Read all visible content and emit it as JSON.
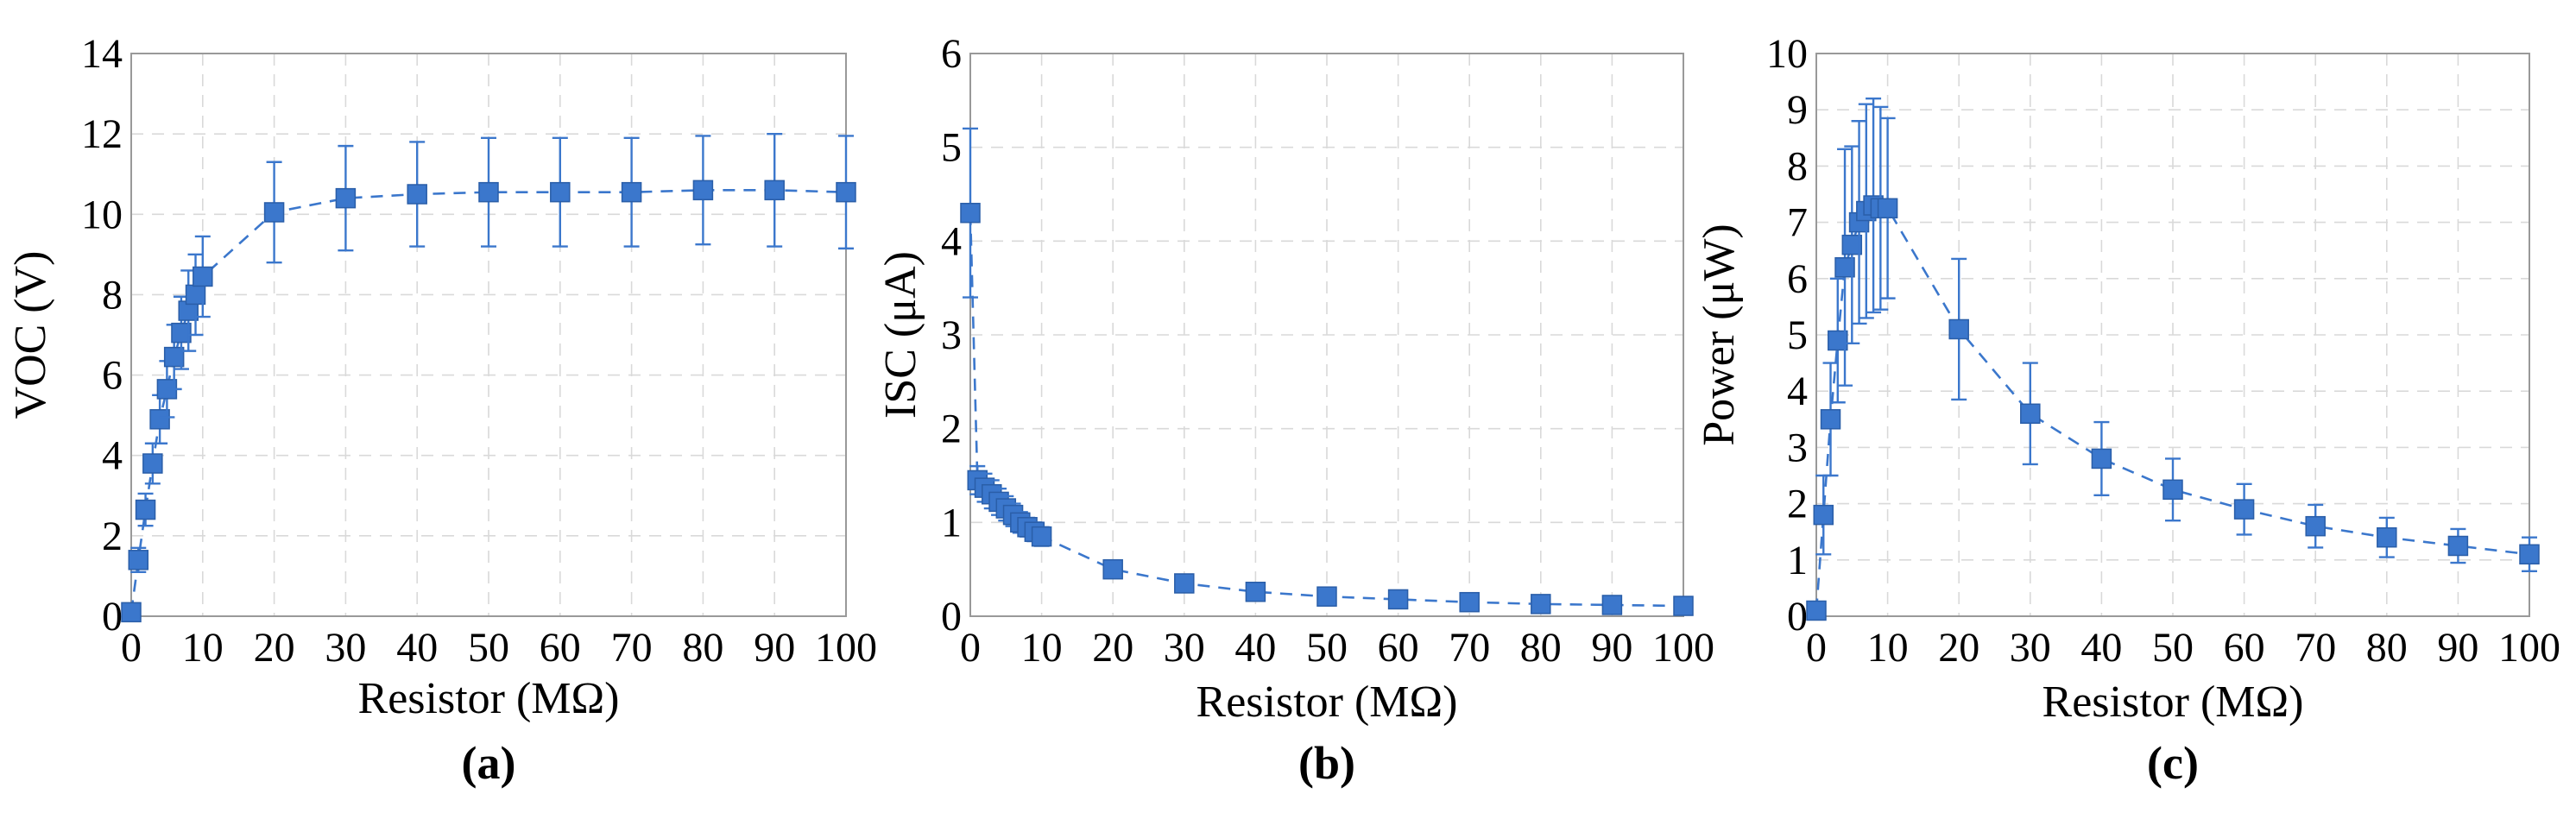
{
  "chart_data": [
    {
      "type": "line",
      "panel_label": "(a)",
      "xlabel": "Resistor (MΩ)",
      "ylabel": "VOC (V)",
      "xlim": [
        0,
        100
      ],
      "ylim": [
        0,
        14
      ],
      "xticks": [
        0,
        10,
        20,
        30,
        40,
        50,
        60,
        70,
        80,
        90,
        100
      ],
      "yticks": [
        0,
        2,
        4,
        6,
        8,
        10,
        12,
        14
      ],
      "grid": true,
      "color": "#3b77cc",
      "series": [
        {
          "x": [
            0,
            1,
            2,
            3,
            4,
            5,
            6,
            7,
            8,
            9,
            10,
            20,
            30,
            40,
            50,
            60,
            70,
            80,
            90,
            100
          ],
          "y": [
            0.1,
            1.4,
            2.65,
            3.8,
            4.9,
            5.65,
            6.45,
            7.05,
            7.6,
            8.0,
            8.45,
            10.05,
            10.4,
            10.5,
            10.55,
            10.55,
            10.55,
            10.6,
            10.6,
            10.55
          ],
          "err": [
            0.1,
            0.3,
            0.4,
            0.5,
            0.6,
            0.7,
            0.8,
            0.9,
            1.0,
            1.0,
            1.0,
            1.25,
            1.3,
            1.3,
            1.35,
            1.35,
            1.35,
            1.35,
            1.4,
            1.4
          ]
        }
      ]
    },
    {
      "type": "line",
      "panel_label": "(b)",
      "xlabel": "Resistor (MΩ)",
      "ylabel": "ISC (μA)",
      "xlim": [
        0,
        100
      ],
      "ylim": [
        0,
        6
      ],
      "xticks": [
        0,
        10,
        20,
        30,
        40,
        50,
        60,
        70,
        80,
        90,
        100
      ],
      "yticks": [
        0,
        1,
        2,
        3,
        4,
        5,
        6
      ],
      "grid": true,
      "color": "#3b77cc",
      "series": [
        {
          "x": [
            0,
            1,
            2,
            3,
            4,
            5,
            6,
            7,
            8,
            9,
            10,
            20,
            30,
            40,
            50,
            60,
            70,
            80,
            90,
            100
          ],
          "y": [
            4.3,
            1.45,
            1.37,
            1.3,
            1.22,
            1.15,
            1.08,
            1.0,
            0.95,
            0.9,
            0.85,
            0.5,
            0.35,
            0.26,
            0.21,
            0.18,
            0.15,
            0.13,
            0.12,
            0.11
          ],
          "err": [
            0.9,
            0.15,
            0.15,
            0.15,
            0.14,
            0.13,
            0.12,
            0.11,
            0.1,
            0.1,
            0.1,
            0.06,
            0.05,
            0.04,
            0.03,
            0.03,
            0.03,
            0.02,
            0.02,
            0.02
          ]
        }
      ]
    },
    {
      "type": "line",
      "panel_label": "(c)",
      "xlabel": "Resistor (MΩ)",
      "ylabel": "Power (μW)",
      "xlim": [
        0,
        100
      ],
      "ylim": [
        0,
        10
      ],
      "xticks": [
        0,
        10,
        20,
        30,
        40,
        50,
        60,
        70,
        80,
        90,
        100
      ],
      "yticks": [
        0,
        1,
        2,
        3,
        4,
        5,
        6,
        7,
        8,
        9,
        10
      ],
      "grid": true,
      "color": "#3b77cc",
      "series": [
        {
          "x": [
            0,
            1,
            2,
            3,
            4,
            5,
            6,
            7,
            8,
            9,
            10,
            20,
            30,
            40,
            50,
            60,
            70,
            80,
            90,
            100
          ],
          "y": [
            0.1,
            1.8,
            3.5,
            4.9,
            6.2,
            6.6,
            7.0,
            7.2,
            7.3,
            7.25,
            7.25,
            5.1,
            3.6,
            2.8,
            2.25,
            1.9,
            1.6,
            1.4,
            1.25,
            1.1
          ],
          "err": [
            0.1,
            0.7,
            1.0,
            1.1,
            2.1,
            1.75,
            1.8,
            1.9,
            1.9,
            1.8,
            1.6,
            1.25,
            0.9,
            0.65,
            0.55,
            0.45,
            0.38,
            0.35,
            0.3,
            0.3
          ]
        }
      ]
    }
  ]
}
